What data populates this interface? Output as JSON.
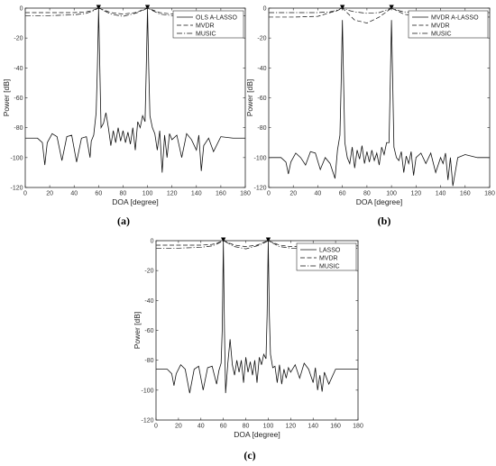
{
  "chart_data": [
    {
      "type": "line",
      "panel_label": "(a)",
      "xlabel": "DOA [degree]",
      "ylabel": "Power [dB]",
      "xlim": [
        0,
        180
      ],
      "ylim": [
        -120,
        0
      ],
      "xticks": [
        "0",
        "20",
        "40",
        "60",
        "80",
        "100",
        "120",
        "140",
        "160",
        "180"
      ],
      "yticks": [
        "0",
        "-20",
        "-40",
        "-60",
        "-80",
        "-100",
        "-120"
      ],
      "grid": false,
      "legend_position": "top-right",
      "true_doa_markers": [
        60,
        100
      ],
      "series": [
        {
          "name": "OLS A-LASSO",
          "style": "solid",
          "x": [
            0,
            10,
            14,
            16,
            18,
            22,
            26,
            30,
            34,
            38,
            42,
            46,
            50,
            53,
            54,
            56,
            58,
            59,
            60,
            61,
            62,
            64,
            66,
            68,
            70,
            72,
            74,
            76,
            78,
            80,
            82,
            84,
            86,
            88,
            90,
            92,
            94,
            96,
            98,
            99,
            100,
            101,
            102,
            104,
            106,
            108,
            110,
            112,
            114,
            116,
            118,
            120,
            124,
            128,
            132,
            136,
            140,
            142,
            144,
            146,
            150,
            154,
            160,
            170,
            180
          ],
          "values": [
            -87,
            -87,
            -90,
            -105,
            -90,
            -84,
            -86,
            -102,
            -86,
            -85,
            -103,
            -87,
            -86,
            -100,
            -89,
            -85,
            -70,
            -40,
            -1,
            -40,
            -80,
            -77,
            -70,
            -80,
            -92,
            -82,
            -90,
            -80,
            -89,
            -82,
            -90,
            -83,
            -91,
            -80,
            -95,
            -76,
            -80,
            -72,
            -76,
            -40,
            -1,
            -40,
            -72,
            -80,
            -84,
            -95,
            -82,
            -110,
            -85,
            -100,
            -84,
            -88,
            -85,
            -100,
            -84,
            -88,
            -95,
            -85,
            -109,
            -92,
            -87,
            -96,
            -86,
            -87,
            -87
          ]
        },
        {
          "name": "MVDR",
          "style": "dashed",
          "x": [
            0,
            20,
            40,
            50,
            55,
            60,
            65,
            70,
            80,
            90,
            95,
            100,
            105,
            110,
            120,
            140,
            160,
            180
          ],
          "values": [
            -3,
            -3,
            -3,
            -2.5,
            -1.5,
            0,
            -1.5,
            -3,
            -4,
            -3,
            -1.5,
            0,
            -1.5,
            -3,
            -4,
            -3.5,
            -3.5,
            -3.5
          ]
        },
        {
          "name": "MUSIC",
          "style": "dashdot",
          "x": [
            0,
            20,
            40,
            50,
            55,
            60,
            65,
            70,
            80,
            90,
            95,
            100,
            105,
            110,
            120,
            140,
            160,
            180
          ],
          "values": [
            -5,
            -5,
            -4.5,
            -3.5,
            -2,
            0,
            -2,
            -4,
            -5.5,
            -3.5,
            -2,
            0,
            -2,
            -4,
            -5,
            -5,
            -5,
            -5
          ]
        }
      ]
    },
    {
      "type": "line",
      "panel_label": "(b)",
      "xlabel": "DOA [degree]",
      "ylabel": "Power [dB]",
      "xlim": [
        0,
        180
      ],
      "ylim": [
        -120,
        0
      ],
      "xticks": [
        "0",
        "20",
        "40",
        "60",
        "80",
        "100",
        "120",
        "140",
        "160",
        "180"
      ],
      "yticks": [
        "0",
        "-20",
        "-40",
        "-60",
        "-80",
        "-100",
        "-120"
      ],
      "grid": false,
      "legend_position": "top-right",
      "true_doa_markers": [
        60,
        100
      ],
      "series": [
        {
          "name": "MVDR A-LASSO",
          "style": "solid",
          "x": [
            0,
            10,
            14,
            16,
            18,
            22,
            26,
            30,
            34,
            38,
            42,
            46,
            50,
            54,
            56,
            58,
            59,
            60,
            61,
            62,
            64,
            66,
            68,
            70,
            72,
            74,
            76,
            78,
            80,
            82,
            84,
            86,
            88,
            90,
            92,
            94,
            96,
            98,
            99,
            100,
            101,
            102,
            104,
            106,
            108,
            110,
            112,
            114,
            116,
            118,
            120,
            124,
            128,
            132,
            136,
            140,
            142,
            144,
            146,
            148,
            150,
            154,
            160,
            170,
            180
          ],
          "values": [
            -100,
            -100,
            -103,
            -111,
            -103,
            -97,
            -100,
            -105,
            -96,
            -97,
            -108,
            -100,
            -104,
            -114,
            -95,
            -85,
            -50,
            -8,
            -50,
            -90,
            -100,
            -104,
            -93,
            -107,
            -95,
            -101,
            -92,
            -104,
            -96,
            -103,
            -95,
            -102,
            -97,
            -105,
            -93,
            -98,
            -90,
            -90,
            -50,
            -8,
            -50,
            -93,
            -100,
            -102,
            -96,
            -110,
            -99,
            -104,
            -96,
            -112,
            -100,
            -97,
            -104,
            -97,
            -110,
            -100,
            -104,
            -97,
            -115,
            -100,
            -119,
            -100,
            -98,
            -100,
            -100
          ]
        },
        {
          "name": "MVDR",
          "style": "dashed",
          "x": [
            0,
            20,
            40,
            50,
            55,
            60,
            65,
            70,
            80,
            90,
            95,
            100,
            105,
            110,
            120,
            140,
            160,
            180
          ],
          "values": [
            -6,
            -6,
            -5.5,
            -3,
            -2,
            0,
            -4,
            -8,
            -10,
            -6,
            -3,
            0,
            -2,
            -4,
            -5.5,
            -6,
            -6,
            -6
          ]
        },
        {
          "name": "MUSIC",
          "style": "dashdot",
          "x": [
            0,
            20,
            40,
            50,
            55,
            60,
            65,
            70,
            80,
            90,
            95,
            100,
            105,
            110,
            120,
            140,
            160,
            180
          ],
          "values": [
            -3,
            -3,
            -3,
            -2.5,
            -1.5,
            0,
            -1.5,
            -2.5,
            -3.5,
            -3,
            -1.5,
            0,
            -1.5,
            -2.5,
            -3,
            -3,
            -3,
            -3
          ]
        }
      ]
    },
    {
      "type": "line",
      "panel_label": "(c)",
      "xlabel": "DOA [degree]",
      "ylabel": "Power [dB]",
      "xlim": [
        0,
        180
      ],
      "ylim": [
        -120,
        0
      ],
      "xticks": [
        "0",
        "20",
        "40",
        "60",
        "80",
        "100",
        "120",
        "140",
        "160",
        "180"
      ],
      "yticks": [
        "0",
        "-20",
        "-40",
        "-60",
        "-80",
        "-100",
        "-120"
      ],
      "grid": false,
      "legend_position": "top-right",
      "true_doa_markers": [
        60,
        100
      ],
      "series": [
        {
          "name": "LASSO",
          "style": "solid",
          "x": [
            0,
            10,
            14,
            16,
            18,
            22,
            26,
            30,
            34,
            38,
            42,
            46,
            50,
            54,
            56,
            58,
            59,
            60,
            61,
            62,
            64,
            66,
            68,
            70,
            72,
            74,
            76,
            78,
            80,
            82,
            84,
            86,
            88,
            90,
            92,
            94,
            96,
            98,
            99,
            100,
            101,
            102,
            104,
            106,
            108,
            110,
            112,
            114,
            116,
            118,
            120,
            124,
            128,
            132,
            136,
            140,
            142,
            144,
            146,
            148,
            150,
            154,
            160,
            170,
            180
          ],
          "values": [
            -86,
            -86,
            -89,
            -97,
            -89,
            -83,
            -86,
            -102,
            -86,
            -84,
            -100,
            -85,
            -84,
            -96,
            -87,
            -82,
            -60,
            -1,
            -60,
            -102,
            -82,
            -66,
            -83,
            -90,
            -80,
            -88,
            -80,
            -95,
            -78,
            -88,
            -81,
            -90,
            -80,
            -95,
            -78,
            -83,
            -76,
            -79,
            -50,
            -1,
            -50,
            -76,
            -85,
            -84,
            -95,
            -83,
            -96,
            -86,
            -92,
            -85,
            -88,
            -83,
            -92,
            -82,
            -86,
            -95,
            -85,
            -100,
            -90,
            -101,
            -88,
            -96,
            -86,
            -86,
            -86
          ]
        },
        {
          "name": "MVDR",
          "style": "dashed",
          "x": [
            0,
            20,
            40,
            50,
            55,
            60,
            65,
            70,
            80,
            90,
            95,
            100,
            105,
            110,
            120,
            140,
            160,
            180
          ],
          "values": [
            -3,
            -3,
            -3,
            -2.5,
            -1.5,
            0,
            -1.5,
            -3,
            -4,
            -3,
            -1.5,
            0,
            -1.5,
            -3,
            -4,
            -3.5,
            -3.5,
            -3.5
          ]
        },
        {
          "name": "MUSIC",
          "style": "dashdot",
          "x": [
            0,
            20,
            40,
            50,
            55,
            60,
            65,
            70,
            80,
            90,
            95,
            100,
            105,
            110,
            120,
            140,
            160,
            180
          ],
          "values": [
            -5,
            -5,
            -4.5,
            -3.5,
            -2,
            0,
            -2,
            -4,
            -5.5,
            -3.5,
            -2,
            0,
            -2,
            -4,
            -5,
            -5,
            -5,
            -5
          ]
        }
      ]
    }
  ]
}
